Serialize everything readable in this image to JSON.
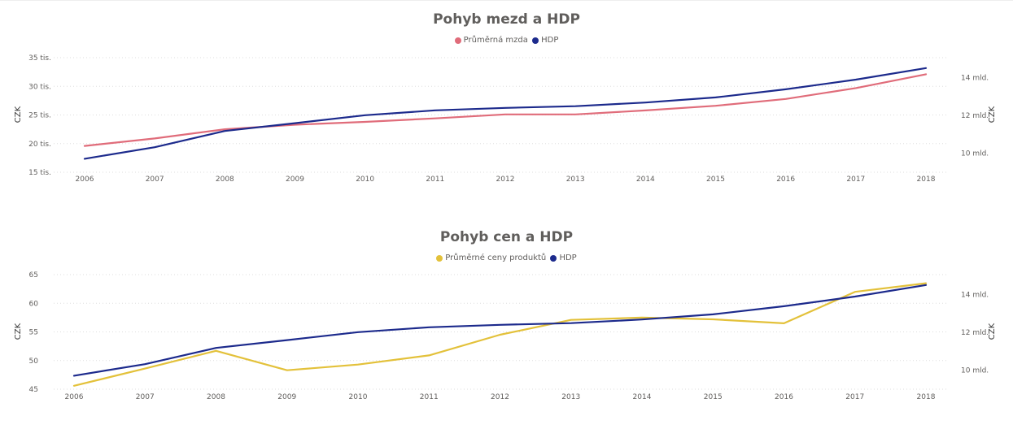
{
  "colors": {
    "wage": "#e06c7a",
    "gdp": "#1c2a8c",
    "prices": "#e3c13a",
    "grid": "#dddddd",
    "text": "#605e5c"
  },
  "chart_data": [
    {
      "type": "line",
      "title": "Pohyb mezd a HDP",
      "categories": [
        "2006",
        "2007",
        "2008",
        "2009",
        "2010",
        "2011",
        "2012",
        "2013",
        "2014",
        "2015",
        "2016",
        "2017",
        "2018"
      ],
      "ylabel": "CZK",
      "y2label": "CZK",
      "ylim": [
        15000,
        35000
      ],
      "yticks": [
        15000,
        20000,
        25000,
        30000,
        35000
      ],
      "ytick_labels": [
        "15 tis.",
        "20 tis.",
        "25 tis.",
        "30 tis.",
        "35 tis."
      ],
      "y2lim": [
        8998,
        15051
      ],
      "y2ticks": [
        10000000000,
        12000000000,
        14000000000
      ],
      "y2ticks_units": [
        10000,
        12000,
        14000
      ],
      "y2tick_labels": [
        "10 mld.",
        "12 mld.",
        "14 mld."
      ],
      "grid": true,
      "legend_position": "top-center",
      "series": [
        {
          "name": "Průměrná mzda",
          "axis": "left",
          "color": "#e06c7a",
          "values": [
            19600,
            20900,
            22500,
            23300,
            23800,
            24400,
            25100,
            25100,
            25800,
            26600,
            27800,
            29700,
            32100
          ]
        },
        {
          "name": "HDP",
          "axis": "right",
          "color": "#1c2a8c",
          "values_unit": "mil. CZK",
          "values": [
            9710,
            10320,
            11180,
            11590,
            12010,
            12270,
            12400,
            12490,
            12680,
            12950,
            13380,
            13890,
            14500
          ]
        }
      ]
    },
    {
      "type": "line",
      "title": "Pohyb cen a HDP",
      "categories": [
        "2006",
        "2007",
        "2008",
        "2009",
        "2010",
        "2011",
        "2012",
        "2013",
        "2014",
        "2015",
        "2016",
        "2017",
        "2018"
      ],
      "ylabel": "CZK",
      "y2label": "CZK",
      "ylim": [
        45,
        65
      ],
      "yticks": [
        45,
        50,
        55,
        60,
        65
      ],
      "ytick_labels": [
        "45",
        "50",
        "55",
        "60",
        "65"
      ],
      "y2lim": [
        8998,
        15051
      ],
      "y2ticks_units": [
        10000,
        12000,
        14000
      ],
      "y2tick_labels": [
        "10 mld.",
        "12 mld.",
        "14 mld."
      ],
      "grid": true,
      "legend_position": "top-center",
      "series": [
        {
          "name": "Průměrné ceny produktů",
          "axis": "left",
          "color": "#e3c13a",
          "values": [
            45.6,
            48.6,
            51.7,
            48.3,
            49.3,
            50.9,
            54.5,
            57.1,
            57.5,
            57.2,
            56.5,
            62.0,
            63.5
          ]
        },
        {
          "name": "HDP",
          "axis": "right",
          "color": "#1c2a8c",
          "values_unit": "mil. CZK",
          "values": [
            9710,
            10320,
            11180,
            11590,
            12010,
            12270,
            12400,
            12490,
            12680,
            12950,
            13380,
            13890,
            14500
          ]
        }
      ]
    }
  ]
}
